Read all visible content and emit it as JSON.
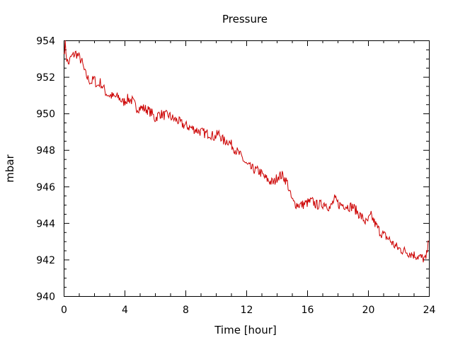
{
  "chart_data": {
    "type": "line",
    "title": "Pressure",
    "xlabel": "Time [hour]",
    "ylabel": "mbar",
    "xlim": [
      0,
      24
    ],
    "ylim": [
      940,
      954
    ],
    "xticks": [
      "0",
      "4",
      "8",
      "12",
      "16",
      "20",
      "24"
    ],
    "yticks": [
      "940",
      "942",
      "944",
      "946",
      "948",
      "950",
      "952",
      "954"
    ],
    "grid": false,
    "legend": "none",
    "line_color": "#cc0000",
    "series": [
      {
        "x": [
          0.0,
          0.1,
          0.2,
          0.3,
          0.5,
          0.8,
          1.0,
          1.2,
          1.4,
          1.6,
          1.8,
          2.0,
          2.2,
          2.4,
          2.6,
          2.8,
          3.0,
          3.3,
          3.6,
          3.9,
          4.2,
          4.5,
          4.8,
          5.2,
          5.5,
          5.8,
          6.0,
          6.3,
          6.6,
          6.9,
          7.2,
          7.5,
          7.8,
          8.1,
          8.4,
          8.7,
          9.0,
          9.3,
          9.6,
          9.9,
          10.2,
          10.5,
          10.8,
          11.1,
          11.4,
          11.7,
          12.0,
          12.3,
          12.6,
          12.9,
          13.2,
          13.5,
          13.8,
          14.1,
          14.4,
          14.7,
          14.9,
          15.1,
          15.4,
          15.7,
          16.0,
          16.3,
          16.6,
          16.9,
          17.2,
          17.5,
          17.8,
          18.1,
          18.4,
          18.7,
          19.0,
          19.3,
          19.6,
          19.9,
          20.2,
          20.5,
          20.8,
          21.1,
          21.4,
          21.7,
          22.0,
          22.3,
          22.6,
          22.9,
          23.2,
          23.5,
          23.8,
          24.0
        ],
        "values": [
          953.3,
          953.8,
          953.0,
          952.7,
          953.1,
          953.3,
          953.1,
          952.8,
          952.2,
          951.9,
          951.7,
          951.9,
          951.5,
          951.7,
          951.4,
          951.1,
          951.0,
          950.9,
          950.9,
          950.6,
          950.8,
          950.7,
          950.3,
          950.3,
          950.2,
          950.0,
          949.7,
          950.0,
          949.9,
          949.9,
          949.7,
          949.6,
          949.4,
          949.3,
          949.2,
          949.1,
          949.0,
          948.9,
          948.9,
          948.7,
          948.9,
          948.5,
          948.5,
          948.2,
          947.9,
          947.6,
          947.2,
          947.0,
          946.9,
          946.8,
          946.5,
          946.3,
          946.2,
          946.6,
          946.6,
          946.2,
          945.5,
          945.1,
          945.0,
          945.0,
          945.1,
          945.2,
          945.0,
          945.0,
          945.1,
          944.8,
          945.3,
          945.0,
          945.0,
          944.9,
          944.9,
          944.6,
          944.3,
          944.0,
          944.4,
          943.9,
          943.5,
          943.3,
          943.1,
          942.8,
          942.6,
          942.5,
          942.4,
          942.3,
          942.2,
          942.1,
          942.0,
          943.0
        ]
      }
    ]
  }
}
